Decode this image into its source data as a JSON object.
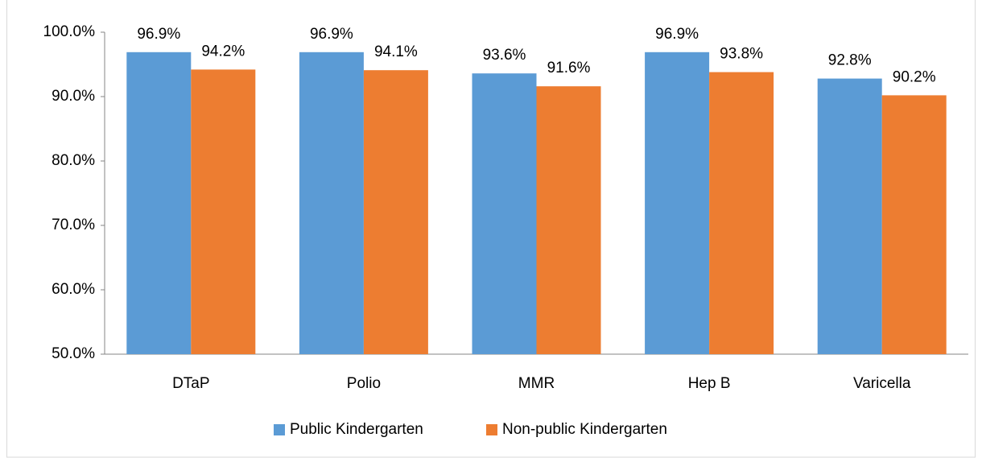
{
  "chart_data": {
    "type": "bar",
    "categories": [
      "DTaP",
      "Polio",
      "MMR",
      "Hep B",
      "Varicella"
    ],
    "series": [
      {
        "name": "Public Kindergarten",
        "color": "#5b9bd5",
        "values": [
          96.9,
          96.9,
          93.6,
          96.9,
          92.8
        ],
        "value_labels": [
          "96.9%",
          "96.9%",
          "93.6%",
          "96.9%",
          "92.8%"
        ]
      },
      {
        "name": "Non-public Kindergarten",
        "color": "#ed7d31",
        "values": [
          94.2,
          94.1,
          91.6,
          93.8,
          90.2
        ],
        "value_labels": [
          "94.2%",
          "94.1%",
          "91.6%",
          "93.8%",
          "90.2%"
        ]
      }
    ],
    "ylim": [
      50,
      100
    ],
    "yticks": [
      {
        "value": 50,
        "label": "50.0%"
      },
      {
        "value": 60,
        "label": "60.0%"
      },
      {
        "value": 70,
        "label": "70.0%"
      },
      {
        "value": 80,
        "label": "80.0%"
      },
      {
        "value": 90,
        "label": "90.0%"
      },
      {
        "value": 100,
        "label": "100.0%"
      }
    ],
    "grid": false,
    "legend": "bottom"
  }
}
